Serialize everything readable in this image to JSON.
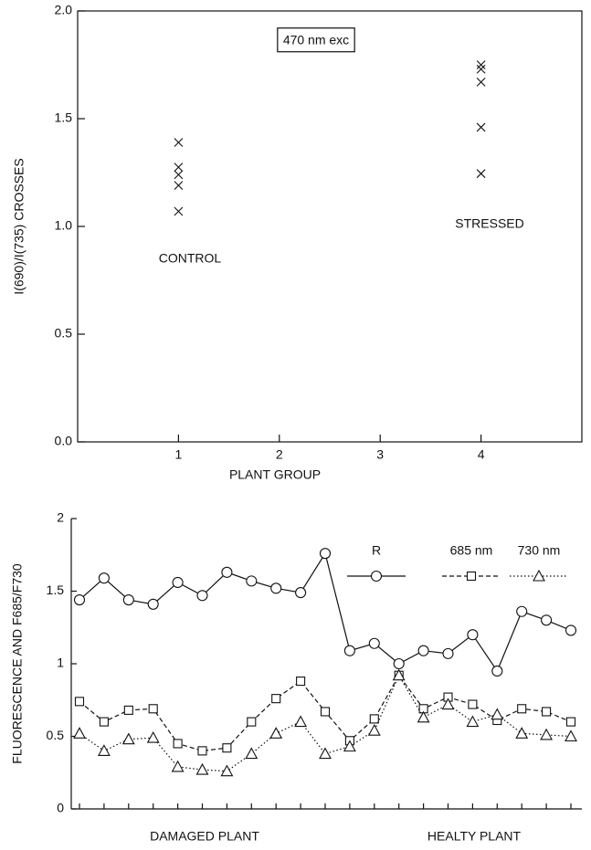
{
  "chart_data": [
    {
      "type": "scatter",
      "xlabel": "PLANT GROUP",
      "ylabel": "I(690)/I(735)  CROSSES",
      "annotations": [
        "470 nm exc",
        "CONTROL",
        "STRESSED"
      ],
      "x": [
        1,
        1,
        1,
        1,
        1,
        4,
        4,
        4,
        4,
        4
      ],
      "y": [
        1.39,
        1.275,
        1.24,
        1.19,
        1.07,
        1.75,
        1.73,
        1.67,
        1.46,
        1.245
      ],
      "color": "#111111",
      "marker": "x",
      "xlim": [
        0,
        5
      ],
      "xticks": [
        1,
        2,
        3,
        4
      ],
      "ylim": [
        0,
        2
      ],
      "yticks": [
        {
          "value": 0,
          "label": "0.0"
        },
        {
          "value": 0.5,
          "label": "0.5"
        },
        {
          "value": 1,
          "label": "1.0"
        },
        {
          "value": 1.5,
          "label": "1.5"
        },
        {
          "value": 2,
          "label": "2.0"
        }
      ]
    },
    {
      "type": "line",
      "ylabel": "FLUORESCENCE AND F685/F730",
      "annotations": [
        "DAMAGED PLANT",
        "HEALTY PLANT"
      ],
      "categories": [
        null,
        null,
        null,
        null,
        null,
        null,
        null,
        null,
        null,
        null,
        null,
        null,
        null,
        null,
        null,
        null,
        null,
        null,
        null,
        null,
        null
      ],
      "series": [
        {
          "name": "R",
          "color": "#111111",
          "style": "solid",
          "marker": "circle",
          "values": [
            1.44,
            1.59,
            1.44,
            1.41,
            1.56,
            1.47,
            1.63,
            1.57,
            1.52,
            1.49,
            1.76,
            1.09,
            1.14,
            1.0,
            1.09,
            1.07,
            1.2,
            0.95,
            1.36,
            1.3,
            1.23
          ]
        },
        {
          "name": "685 nm",
          "color": "#111111",
          "style": "dashed",
          "marker": "square",
          "values": [
            0.74,
            0.6,
            0.68,
            0.69,
            0.45,
            0.4,
            0.42,
            0.6,
            0.76,
            0.88,
            0.67,
            0.47,
            0.62,
            0.92,
            0.69,
            0.77,
            0.72,
            0.61,
            0.69,
            0.67,
            0.6
          ]
        },
        {
          "name": "730 nm",
          "color": "#111111",
          "style": "dotted",
          "marker": "triangle",
          "values": [
            0.52,
            0.4,
            0.48,
            0.49,
            0.29,
            0.27,
            0.26,
            0.38,
            0.52,
            0.6,
            0.38,
            0.43,
            0.54,
            0.92,
            0.63,
            0.72,
            0.6,
            0.65,
            0.52,
            0.51,
            0.5
          ]
        }
      ],
      "ylim": [
        0,
        2
      ],
      "yticks": [
        0,
        0.5,
        1,
        1.5,
        2
      ],
      "legend": "upper right"
    }
  ]
}
